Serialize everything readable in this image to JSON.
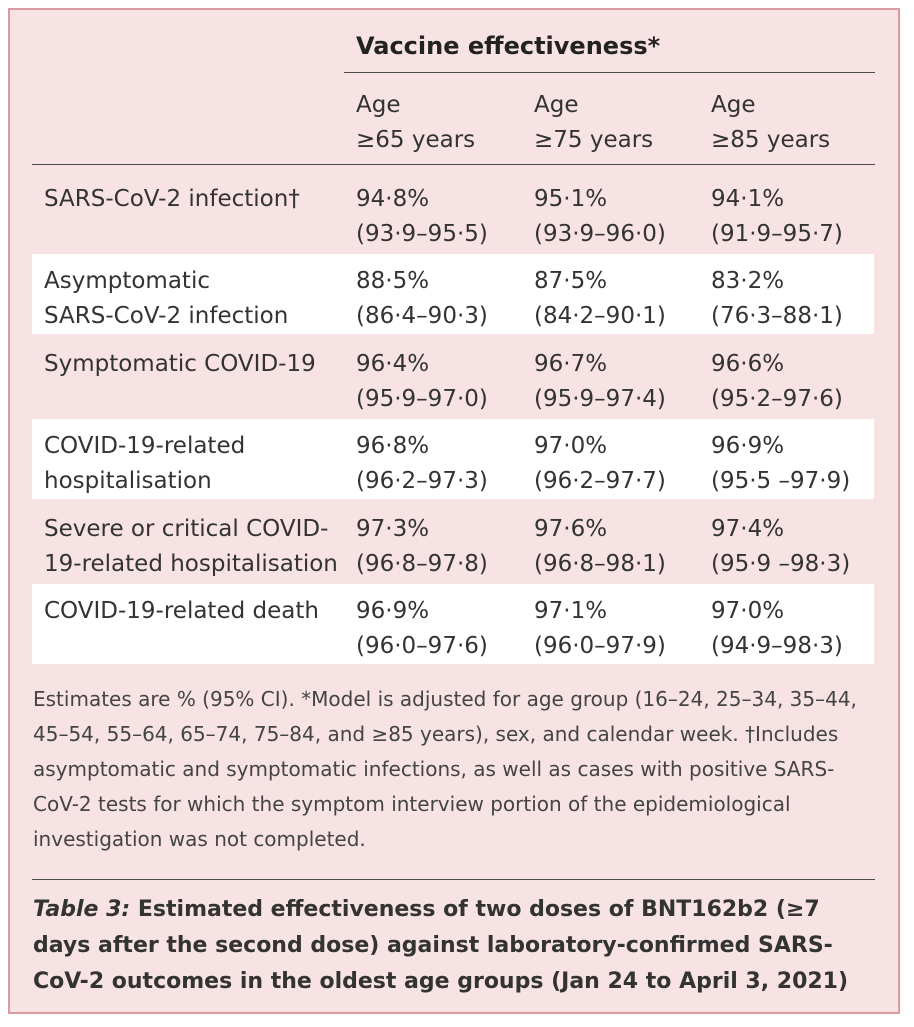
{
  "header": {
    "title": "Vaccine effectiveness*"
  },
  "columns": [
    {
      "line1": "Age",
      "line2": "≥65 years"
    },
    {
      "line1": "Age",
      "line2": "≥75 years"
    },
    {
      "line1": "Age",
      "line2": "≥85 years"
    }
  ],
  "rows": [
    {
      "label1": "SARS-CoV-2 infection†",
      "label2": "",
      "cells": [
        {
          "value": "94·8%",
          "ci": "(93·9–95·5)"
        },
        {
          "value": "95·1%",
          "ci": "(93·9–96·0)"
        },
        {
          "value": "94·1%",
          "ci": "(91·9–95·7)"
        }
      ]
    },
    {
      "label1": "Asymptomatic",
      "label2": "SARS-CoV-2 infection",
      "cells": [
        {
          "value": "88·5%",
          "ci": "(86·4–90·3)"
        },
        {
          "value": "87·5%",
          "ci": "(84·2–90·1)"
        },
        {
          "value": "83·2%",
          "ci": "(76·3–88·1)"
        }
      ]
    },
    {
      "label1": "Symptomatic COVID-19",
      "label2": "",
      "cells": [
        {
          "value": "96·4%",
          "ci": "(95·9–97·0)"
        },
        {
          "value": "96·7%",
          "ci": "(95·9–97·4)"
        },
        {
          "value": "96·6%",
          "ci": "(95·2–97·6)"
        }
      ]
    },
    {
      "label1": "COVID-19-related",
      "label2": "hospitalisation",
      "cells": [
        {
          "value": "96·8%",
          "ci": "(96·2–97·3)"
        },
        {
          "value": "97·0%",
          "ci": "(96·2–97·7)"
        },
        {
          "value": "96·9%",
          "ci": "(95·5 –97·9)"
        }
      ]
    },
    {
      "label1": "Severe or critical COVID-",
      "label2": "19-related hospitalisation",
      "cells": [
        {
          "value": "97·3%",
          "ci": "(96·8–97·8)"
        },
        {
          "value": "97·6%",
          "ci": "(96·8–98·1)"
        },
        {
          "value": "97·4%",
          "ci": "(95·9 –98·3)"
        }
      ]
    },
    {
      "label1": "COVID-19-related death",
      "label2": "",
      "cells": [
        {
          "value": "96·9%",
          "ci": "(96·0–97·6)"
        },
        {
          "value": "97·1%",
          "ci": "(96·0–97·9)"
        },
        {
          "value": "97·0%",
          "ci": "(94·9–98·3)"
        }
      ]
    }
  ],
  "footnote": "Estimates are % (95% CI). *Model is adjusted for age group (16–24, 25–34, 35–44, 45–54, 55–64, 65–74, 75–84, and ≥85 years), sex, and calendar week. †Includes asymptomatic and symptomatic infections, as well as cases with positive SARS-CoV-2 tests for which the symptom interview portion of the epidemiological investigation was not completed.",
  "caption": {
    "label": "Table 3:",
    "text": "Estimated effectiveness of two doses of BNT162b2 (≥7 days after the second dose) against laboratory-confirmed SARS-CoV-2 outcomes in the oldest age groups (Jan 24 to April 3, 2021)"
  }
}
